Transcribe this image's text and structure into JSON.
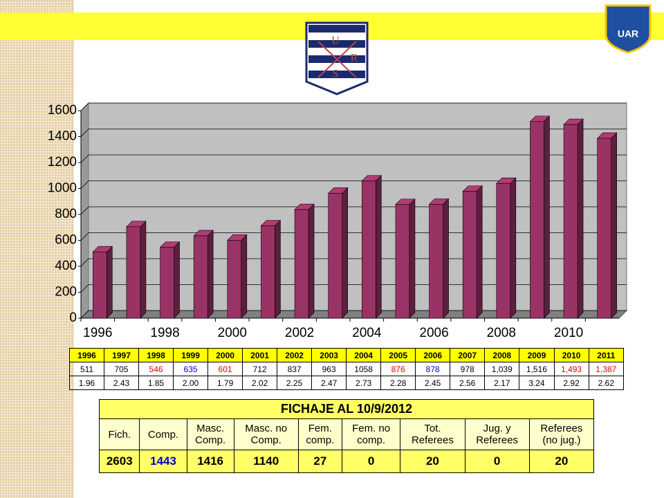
{
  "logo_text": "UAR",
  "shield_letters": [
    "U",
    "R",
    "S"
  ],
  "chart_data": {
    "type": "bar",
    "categories": [
      "1996",
      null,
      "1998",
      null,
      "2000",
      null,
      "2002",
      null,
      "2004",
      null,
      "2006",
      null,
      "2008",
      null,
      "2010",
      null
    ],
    "values": [
      511,
      705,
      546,
      635,
      601,
      712,
      837,
      963,
      1058,
      876,
      878,
      978,
      1039,
      1516,
      1493,
      1387
    ],
    "color": "#993366",
    "ylim": [
      0,
      1600
    ],
    "yticks": [
      0,
      200,
      400,
      600,
      800,
      1000,
      1200,
      1400,
      1600
    ],
    "grid": true
  },
  "table": {
    "rows": [
      [
        "1996",
        "1997",
        "1998",
        "1999",
        "2000",
        "2001",
        "2002",
        "2003",
        "2004",
        "2005",
        "2006",
        "2007",
        "2008",
        "2009",
        "2010",
        "2011"
      ],
      [
        "511",
        "705",
        "546",
        "635",
        "601",
        "712",
        "837",
        "963",
        "1058",
        "876",
        "878",
        "978",
        "1,039",
        "1,516",
        "1,493",
        "1,387"
      ],
      [
        "1.96",
        "2.43",
        "1.85",
        "2.00",
        "1.79",
        "2.02",
        "2.25",
        "2.47",
        "2.73",
        "2.28",
        "2.45",
        "2.56",
        "2.17",
        "3.24",
        "2.92",
        "2.62"
      ]
    ],
    "value_colors": [
      "#000",
      "#000",
      "#e00000",
      "#0000cc",
      "#e00000",
      "#000",
      "#000",
      "#000",
      "#000",
      "#e00000",
      "#0000cc",
      "#000",
      "#000",
      "#000",
      "#e00000",
      "#e00000"
    ]
  },
  "registration": {
    "title": "FICHAJE AL 10/9/2012",
    "headers": [
      "Fich.",
      "Comp.",
      "Masc.\nComp.",
      "Masc. no\nComp.",
      "Fem.\ncomp.",
      "Fem. no\ncomp.",
      "Tot.\nReferees",
      "Jug. y\nReferees",
      "Referees\n(no jug.)"
    ],
    "values": [
      "2603",
      "1443",
      "1416",
      "1140",
      "27",
      "0",
      "20",
      "0",
      "20"
    ],
    "value_colors": [
      "#000",
      "#0000cc",
      "#000",
      "#000",
      "#000",
      "#000",
      "#000",
      "#000",
      "#000"
    ]
  }
}
